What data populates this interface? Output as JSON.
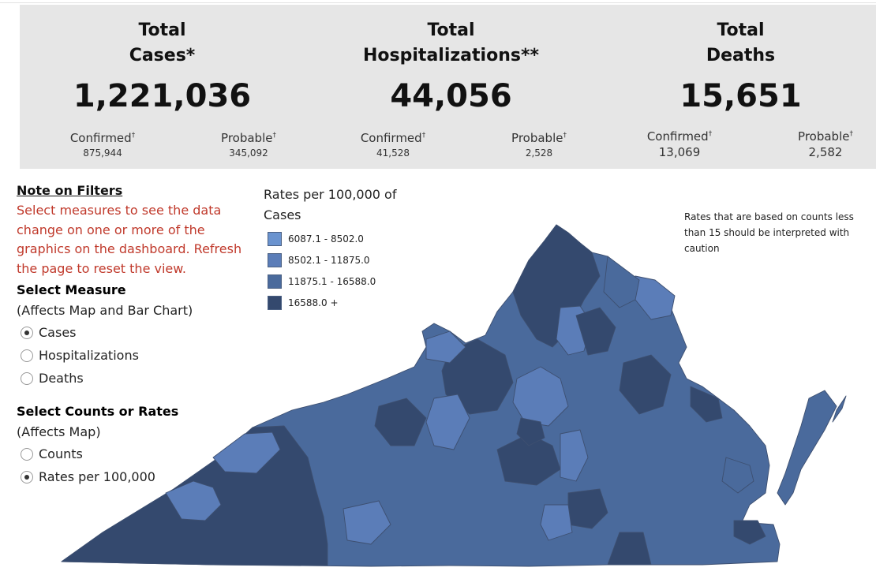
{
  "stats": {
    "cases": {
      "title_line1": "Total",
      "title_line2": "Cases*",
      "total": "1,221,036",
      "confirmed_label": "Confirmed",
      "confirmed_value": "875,944",
      "probable_label": "Probable",
      "probable_value": "345,092"
    },
    "hospitalizations": {
      "title_line1": "Total",
      "title_line2": "Hospitalizations**",
      "total": "44,056",
      "confirmed_label": "Confirmed",
      "confirmed_value": "41,528",
      "probable_label": "Probable",
      "probable_value": "2,528"
    },
    "deaths": {
      "title_line1": "Total",
      "title_line2": "Deaths",
      "total": "15,651",
      "confirmed_label": "Confirmed",
      "confirmed_value": "13,069",
      "probable_label": "Probable",
      "probable_value": "2,582"
    },
    "dagger": "†"
  },
  "filters": {
    "note_title": "Note on Filters",
    "note_text": "Select measures to see the data change on one or more of the graphics on the dashboard. Refresh the page to reset the view.",
    "measure_title": "Select Measure",
    "measure_subtitle": "(Affects Map and Bar Chart)",
    "measure_options": [
      {
        "label": "Cases",
        "selected": true
      },
      {
        "label": "Hospitalizations",
        "selected": false
      },
      {
        "label": "Deaths",
        "selected": false
      }
    ],
    "counts_title": "Select Counts or Rates",
    "counts_subtitle": "(Affects Map)",
    "counts_options": [
      {
        "label": "Counts",
        "selected": false
      },
      {
        "label": "Rates per 100,000",
        "selected": true
      }
    ]
  },
  "legend": {
    "title": "Rates per 100,000 of Cases",
    "items": [
      {
        "label": "6087.1 - 8502.0",
        "color": "#6a93cf"
      },
      {
        "label": "8502.1 - 11875.0",
        "color": "#5b7db8"
      },
      {
        "label": "11875.1 - 16588.0",
        "color": "#4a6a9c"
      },
      {
        "label": "16588.0 +",
        "color": "#34496e"
      }
    ]
  },
  "caution_note": "Rates that are based on counts less than 15 should be interpreted with caution",
  "map": {
    "border_color": "#3d4f70"
  }
}
